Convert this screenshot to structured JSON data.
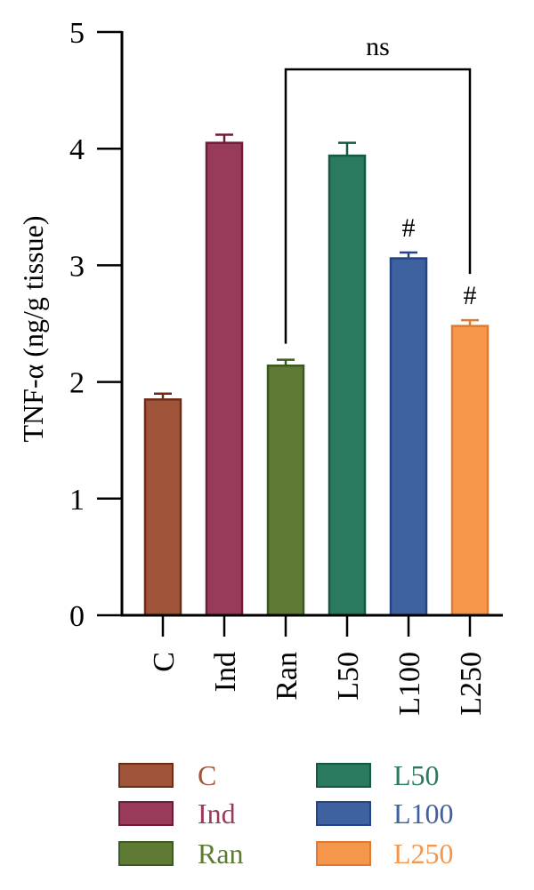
{
  "chart_data": {
    "type": "bar",
    "ylabel": "TNF-α (ng/g tissue)",
    "xlabel": "",
    "ylim": [
      0,
      5
    ],
    "yticks": [
      0,
      1,
      2,
      3,
      4,
      5
    ],
    "categories": [
      "C",
      "Ind",
      "Ran",
      "L50",
      "L100",
      "L250"
    ],
    "values": [
      1.85,
      4.05,
      2.14,
      3.94,
      3.06,
      2.48
    ],
    "errors": [
      0.05,
      0.07,
      0.05,
      0.11,
      0.05,
      0.05
    ],
    "colors": [
      "#a0553a",
      "#983a5a",
      "#5e7a35",
      "#2a7a60",
      "#3e62a0",
      "#f4974c"
    ],
    "edge_colors": [
      "#6e2c18",
      "#6e1a3a",
      "#3a5a20",
      "#145a40",
      "#24448a",
      "#e07a30"
    ],
    "markers": [
      "",
      "",
      "",
      "",
      "#",
      "#"
    ],
    "bracket": {
      "from": "Ran",
      "to": "L250",
      "label": "ns"
    },
    "legend": {
      "placement": "bottom",
      "entries": [
        "C",
        "Ind",
        "Ran",
        "L50",
        "L100",
        "L250"
      ],
      "text_colors": [
        "#a0553a",
        "#983a5a",
        "#5e7a35",
        "#2a7a60",
        "#3e62a0",
        "#f4974c"
      ]
    }
  }
}
